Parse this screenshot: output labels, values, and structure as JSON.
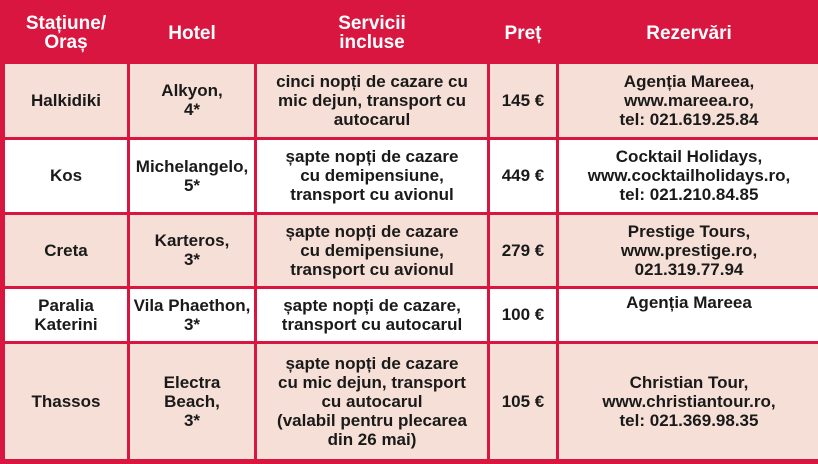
{
  "headers": [
    "Stațiune/\nOraș",
    "Hotel",
    "Servicii\nincluse",
    "Preț",
    "Rezervări"
  ],
  "rows": [
    {
      "city": "Halkidiki",
      "hotel": "Alkyon,\n4*",
      "services": "cinci nopți de cazare cu\nmic dejun, transport cu\nautocarul",
      "price": "145 €",
      "booking": "Agenția Mareea,\nwww.mareea.ro,\ntel: 021.619.25.84"
    },
    {
      "city": "Kos",
      "hotel": "Michelangelo,\n5*",
      "services": "șapte nopți de cazare\ncu demipensiune,\ntransport cu avionul",
      "price": "449 €",
      "booking": "Cocktail Holidays,\nwww.cocktailholidays.ro,\ntel: 021.210.84.85"
    },
    {
      "city": "Creta",
      "hotel": "Karteros,\n3*",
      "services": "șapte nopți de cazare\ncu demipensiune,\ntransport cu avionul",
      "price": "279 €",
      "booking": "Prestige Tours,\nwww.prestige.ro,\n021.319.77.94"
    },
    {
      "city": "Paralia\nKaterini",
      "hotel": "Vila Phaethon,\n3*",
      "services": "șapte nopți de cazare,\ntransport cu autocarul",
      "price": "100 €",
      "booking": "Agenția Mareea"
    },
    {
      "city": "Thassos",
      "hotel": "Electra\nBeach,\n3*",
      "services": "șapte nopți de cazare\ncu mic dejun, transport\ncu autocarul\n(valabil pentru plecarea\ndin 26 mai)",
      "price": "105 €",
      "booking": "Christian Tour,\nwww.christiantour.ro,\ntel: 021.369.98.35"
    }
  ],
  "colors": {
    "frame": "#d8163f",
    "row_pink": "#f6dfd6",
    "row_white": "#ffffff"
  }
}
